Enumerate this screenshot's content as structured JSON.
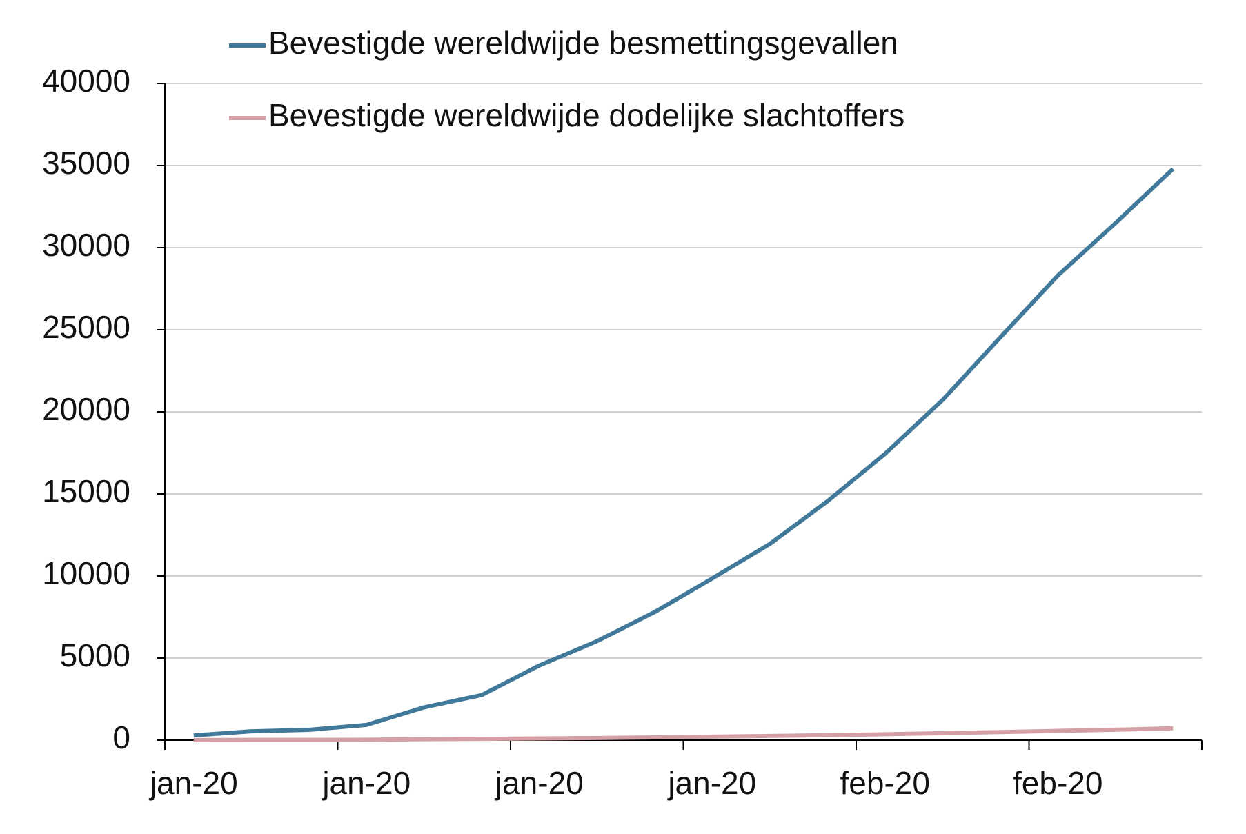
{
  "chart_data": {
    "type": "line",
    "categories": [
      "jan-20",
      null,
      null,
      "jan-20",
      null,
      null,
      "jan-20",
      null,
      null,
      "jan-20",
      null,
      null,
      "feb-20",
      null,
      null,
      "feb-20",
      null,
      null
    ],
    "series": [
      {
        "name": "Bevestigde wereldwijde besmettingsgevallen",
        "color": "#41799b",
        "values": [
          290,
          540,
          630,
          930,
          2000,
          2750,
          4550,
          6030,
          7800,
          9850,
          11950,
          14550,
          17440,
          20720,
          24530,
          28300,
          31490,
          34800
        ]
      },
      {
        "name": "Bevestigde wereldwijde dodelijke slachtoffers",
        "color": "#d4a0a6",
        "values": [
          6,
          17,
          17,
          26,
          56,
          80,
          106,
          132,
          170,
          213,
          259,
          304,
          362,
          426,
          492,
          565,
          638,
          724
        ]
      }
    ],
    "ylim": [
      0,
      40000
    ],
    "yticks": [
      0,
      5000,
      10000,
      15000,
      20000,
      25000,
      30000,
      35000,
      40000
    ],
    "grid": true,
    "legend": "top"
  }
}
